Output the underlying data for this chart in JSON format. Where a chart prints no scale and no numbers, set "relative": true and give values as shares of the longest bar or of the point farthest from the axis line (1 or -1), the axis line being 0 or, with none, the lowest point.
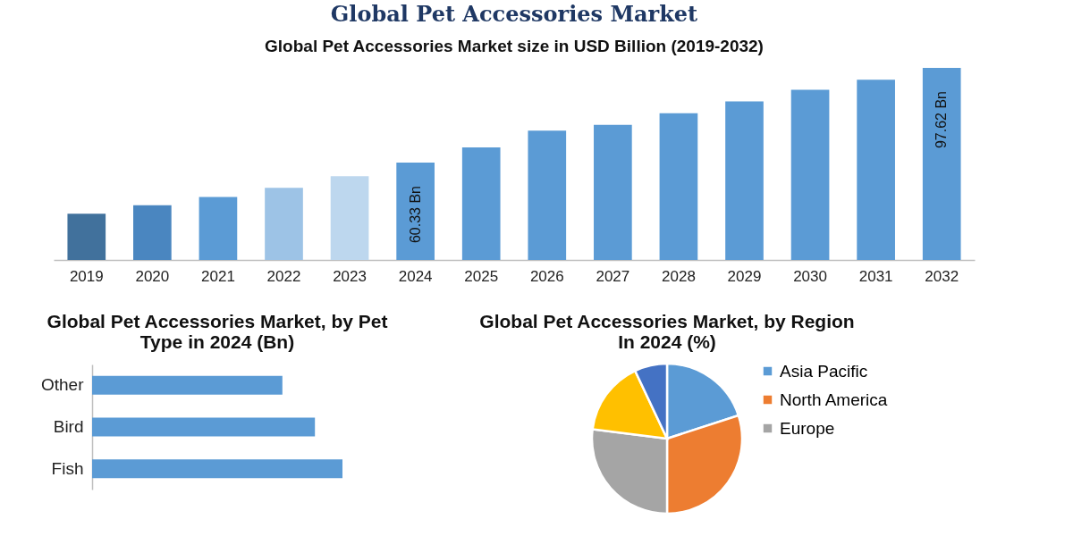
{
  "chart_data": [
    {
      "type": "bar",
      "title": "Global Pet Accessories Market",
      "subtitle": "Global Pet Accessories Market size in USD Billion (2019-2032)",
      "categories": [
        "2019",
        "2020",
        "2021",
        "2022",
        "2023",
        "2024",
        "2025",
        "2026",
        "2027",
        "2028",
        "2029",
        "2030",
        "2031",
        "2032"
      ],
      "values": [
        40.2,
        43.5,
        46.8,
        50.4,
        55.0,
        60.33,
        66.3,
        72.9,
        75.2,
        79.8,
        84.4,
        89.0,
        93.0,
        97.62
      ],
      "colors": [
        "#41719c",
        "#4a86c0",
        "#5b9bd5",
        "#9dc3e6",
        "#bdd7ee",
        "#5b9bd5",
        "#5b9bd5",
        "#5b9bd5",
        "#5b9bd5",
        "#5b9bd5",
        "#5b9bd5",
        "#5b9bd5",
        "#5b9bd5",
        "#5b9bd5"
      ],
      "value_labels": [
        null,
        null,
        null,
        null,
        null,
        "60.33 Bn",
        null,
        null,
        null,
        null,
        null,
        null,
        null,
        "97.62 Bn"
      ],
      "ylim": [
        22,
        97.62
      ],
      "tick_labels": "x"
    },
    {
      "type": "bar",
      "orientation": "horizontal",
      "relative": true,
      "title": "Global Pet Accessories Market, by Pet Type in 2024 (Bn)",
      "categories": [
        "Other",
        "Bird",
        "Fish"
      ],
      "values": [
        0.76,
        0.89,
        1
      ],
      "color": "#5b9bd5",
      "tick_labels": "y"
    },
    {
      "type": "pie",
      "title": "Global Pet Accessories Market, by Region In 2024 (%)",
      "categories": [
        "Asia Pacific",
        "North America",
        "Europe",
        null,
        null
      ],
      "values": [
        20,
        30,
        27,
        16,
        7
      ],
      "colors": [
        "#5b9bd5",
        "#ed7d31",
        "#a5a5a5",
        "#ffc000",
        "#4472c4"
      ],
      "legend": "right"
    }
  ]
}
